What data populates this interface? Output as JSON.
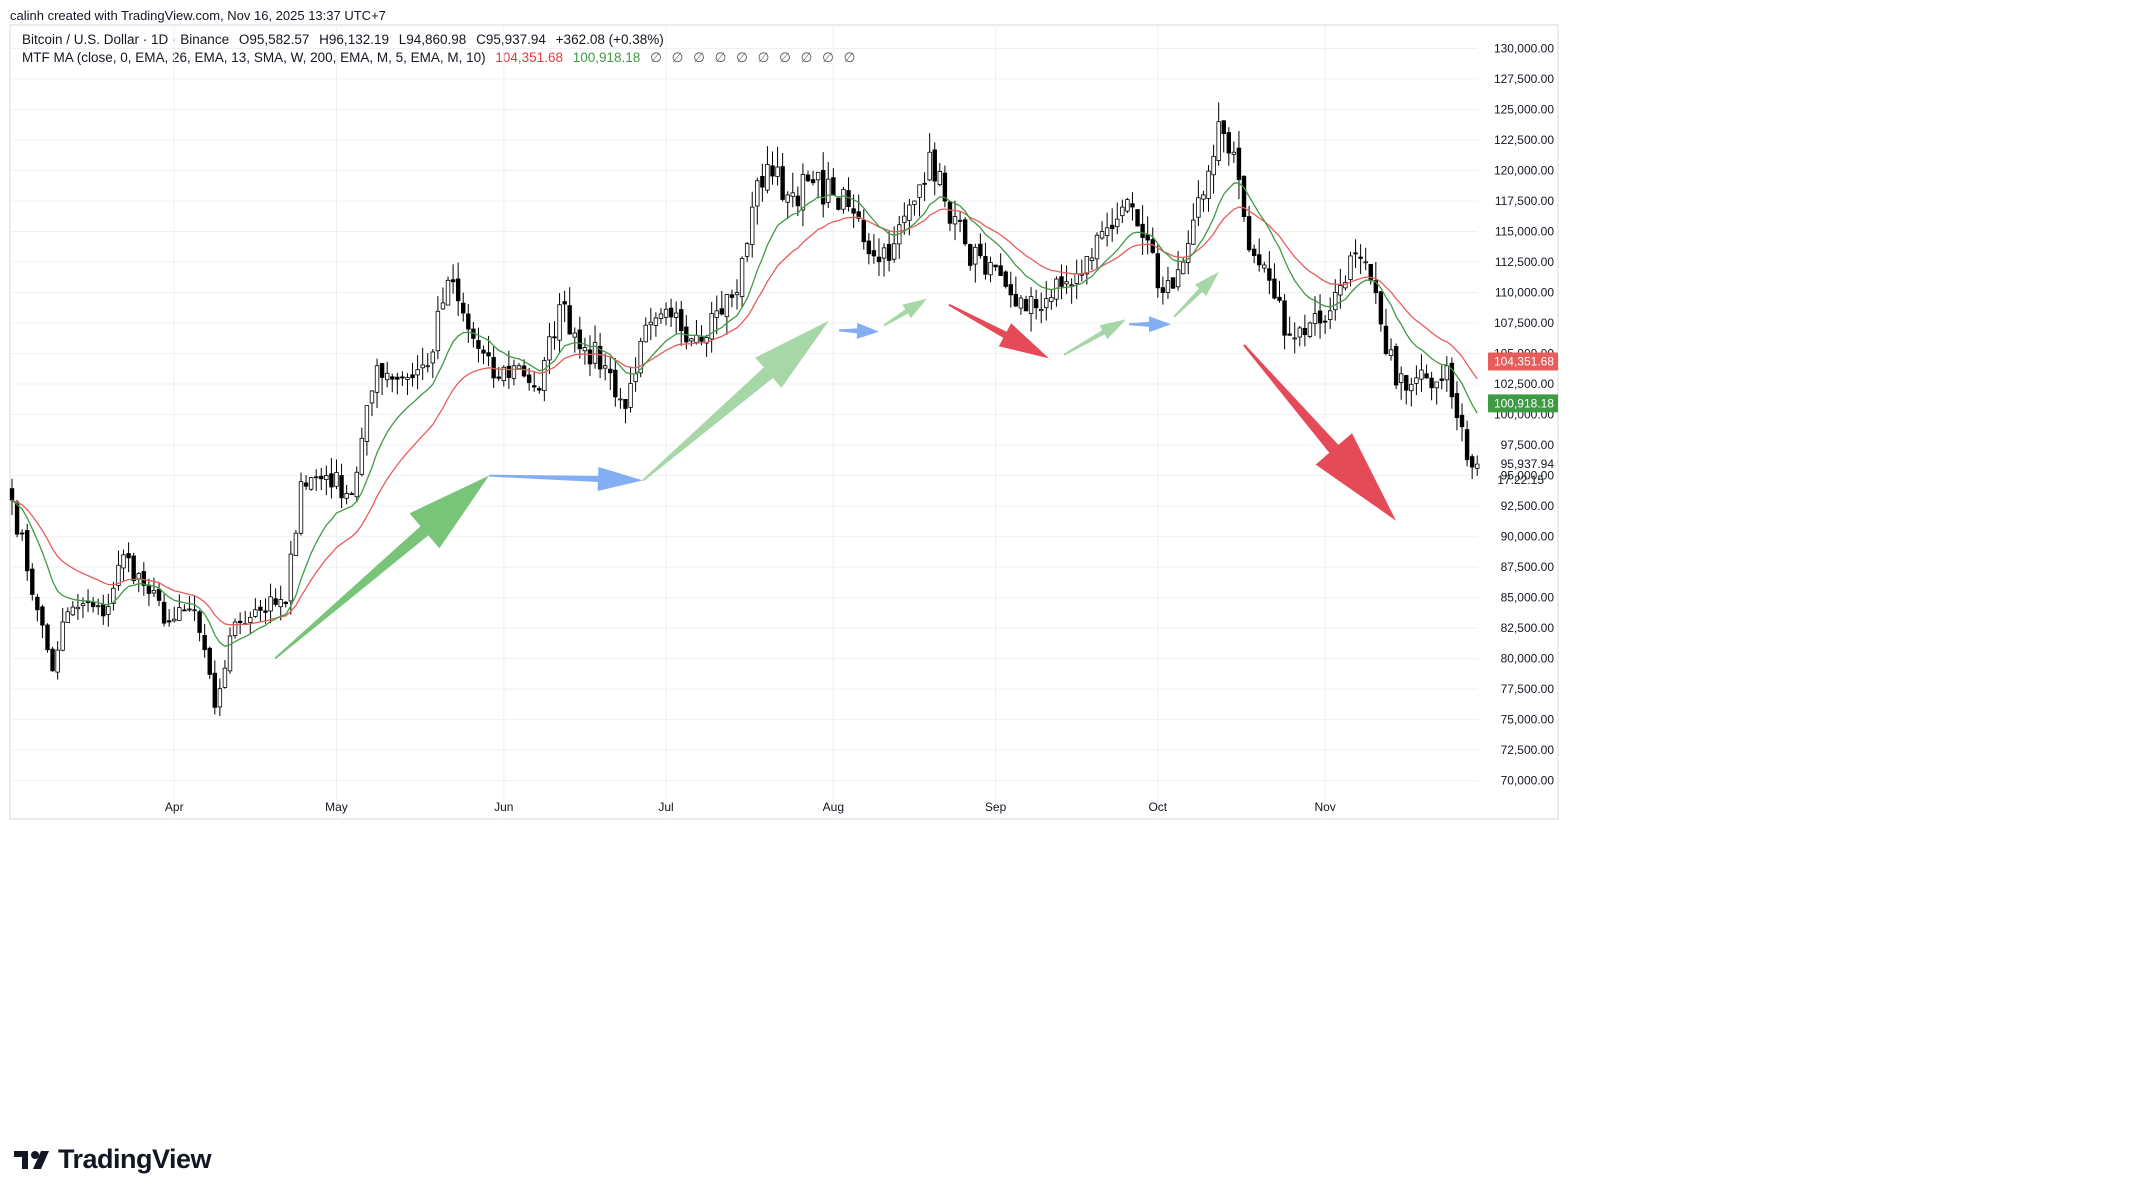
{
  "header": {
    "creator": "calinh created with TradingView.com, Nov 16, 2025 13:37 UTC+7"
  },
  "legend": {
    "symbol": "Bitcoin / U.S. Dollar · 1D · Binance",
    "open": "O95,582.57",
    "high": "H96,132.19",
    "low": "L94,860.98",
    "close": "C95,937.94",
    "change": "+362.08 (+0.38%)",
    "indicator": "MTF MA (close, 0, EMA, 26, EMA, 13, SMA, W, 200, EMA, M, 5, EMA, M, 10)",
    "ma1_value": "104,351.68",
    "ma2_value": "100,918.18",
    "hidden_icons": "∅ ∅ ∅ ∅ ∅ ∅ ∅ ∅ ∅ ∅"
  },
  "chart_data": {
    "type": "candlestick",
    "x_months": [
      "Apr",
      "May",
      "Jun",
      "Jul",
      "Aug",
      "Sep",
      "Oct",
      "Nov"
    ],
    "y_ticks": [
      "130,000.00",
      "127,500.00",
      "125,000.00",
      "122,500.00",
      "120,000.00",
      "117,500.00",
      "115,000.00",
      "112,500.00",
      "110,000.00",
      "107,500.00",
      "105,000.00",
      "102,500.00",
      "100,000.00",
      "97,500.00",
      "95,000.00",
      "92,500.00",
      "90,000.00",
      "87,500.00",
      "85,000.00",
      "82,500.00",
      "80,000.00",
      "77,500.00",
      "75,000.00",
      "72,500.00",
      "70,000.00"
    ],
    "ylim": [
      69000,
      131000
    ],
    "last_price_label": "95,937.94",
    "countdown_label": "17:22:15",
    "ma_red_label": "104,351.68",
    "ma_green_label": "100,918.18",
    "colors": {
      "up": "#ffffff",
      "down": "#000000",
      "ma_red": "#e85c5c",
      "ma_green": "#3f9a44",
      "arrow_green": "#6cbf6c",
      "arrow_light_green": "#9fd39f",
      "arrow_blue": "#7aa7f2",
      "arrow_red": "#e23b4a"
    },
    "anchors": [
      [
        0,
        93000
      ],
      [
        5,
        84000
      ],
      [
        8,
        79000
      ],
      [
        10,
        83000
      ],
      [
        14,
        84500
      ],
      [
        18,
        83500
      ],
      [
        22,
        88500
      ],
      [
        26,
        86000
      ],
      [
        31,
        83000
      ],
      [
        36,
        84000
      ],
      [
        40,
        76000
      ],
      [
        44,
        83000
      ],
      [
        48,
        84000
      ],
      [
        54,
        84500
      ],
      [
        57,
        94500
      ],
      [
        62,
        95000
      ],
      [
        67,
        93500
      ],
      [
        72,
        104000
      ],
      [
        77,
        103000
      ],
      [
        82,
        104000
      ],
      [
        86,
        111000
      ],
      [
        90,
        107000
      ],
      [
        95,
        103000
      ],
      [
        100,
        104000
      ],
      [
        104,
        102000
      ],
      [
        108,
        109000
      ],
      [
        113,
        105500
      ],
      [
        117,
        104000
      ],
      [
        121,
        100500
      ],
      [
        124,
        106000
      ],
      [
        130,
        108000
      ],
      [
        135,
        106500
      ],
      [
        139,
        108500
      ],
      [
        143,
        110000
      ],
      [
        146,
        117000
      ],
      [
        149,
        120500
      ],
      [
        153,
        118000
      ],
      [
        158,
        119000
      ],
      [
        162,
        118000
      ],
      [
        166,
        116500
      ],
      [
        170,
        113000
      ],
      [
        174,
        114000
      ],
      [
        178,
        117500
      ],
      [
        181,
        121500
      ],
      [
        184,
        117500
      ],
      [
        188,
        114000
      ],
      [
        192,
        111500
      ],
      [
        196,
        110500
      ],
      [
        200,
        108500
      ],
      [
        204,
        109500
      ],
      [
        207,
        110500
      ],
      [
        211,
        111500
      ],
      [
        215,
        115000
      ],
      [
        219,
        117000
      ],
      [
        223,
        114500
      ],
      [
        227,
        110000
      ],
      [
        231,
        112500
      ],
      [
        235,
        118000
      ],
      [
        238,
        124000
      ],
      [
        241,
        121500
      ],
      [
        244,
        113500
      ],
      [
        248,
        111000
      ],
      [
        252,
        106500
      ],
      [
        256,
        107500
      ],
      [
        260,
        108500
      ],
      [
        264,
        113000
      ],
      [
        268,
        111000
      ],
      [
        271,
        105000
      ],
      [
        275,
        102000
      ],
      [
        279,
        103000
      ],
      [
        283,
        104000
      ],
      [
        286,
        99000
      ],
      [
        288,
        95700
      ],
      [
        289,
        95937.94
      ]
    ],
    "arrows": [
      {
        "color": "#6cbf6c",
        "from": [
          275,
          80000
        ],
        "to": [
          489,
          95000
        ],
        "width": 12,
        "head": 46,
        "headLen": 85
      },
      {
        "color": "#7aa7f2",
        "from": [
          489,
          95000
        ],
        "to": [
          643,
          94600
        ],
        "width": 6,
        "head": 24,
        "headLen": 45
      },
      {
        "color": "#9fd39f",
        "from": [
          643,
          94600
        ],
        "to": [
          829,
          107700
        ],
        "width": 14,
        "head": 40,
        "headLen": 80
      },
      {
        "color": "#7aa7f2",
        "from": [
          839,
          106900
        ],
        "to": [
          879,
          106800
        ],
        "width": 5,
        "head": 16,
        "headLen": 22
      },
      {
        "color": "#9fd39f",
        "from": [
          884,
          107300
        ],
        "to": [
          927,
          109500
        ],
        "width": 5,
        "head": 16,
        "headLen": 24
      },
      {
        "color": "#e23b4a",
        "from": [
          949,
          109000
        ],
        "to": [
          1049,
          104600
        ],
        "width": 7,
        "head": 26,
        "headLen": 50
      },
      {
        "color": "#9fd39f",
        "from": [
          1064,
          104900
        ],
        "to": [
          1126,
          107800
        ],
        "width": 5,
        "head": 16,
        "headLen": 26
      },
      {
        "color": "#7aa7f2",
        "from": [
          1129,
          107400
        ],
        "to": [
          1171,
          107400
        ],
        "width": 5,
        "head": 16,
        "headLen": 22
      },
      {
        "color": "#9fd39f",
        "from": [
          1174,
          108000
        ],
        "to": [
          1219,
          111700
        ],
        "width": 5,
        "head": 16,
        "headLen": 26
      },
      {
        "color": "#e23b4a",
        "from": [
          1244,
          105700
        ],
        "to": [
          1396,
          91300
        ],
        "width": 12,
        "head": 48,
        "headLen": 95
      }
    ]
  },
  "brand": {
    "name": "TradingView"
  }
}
